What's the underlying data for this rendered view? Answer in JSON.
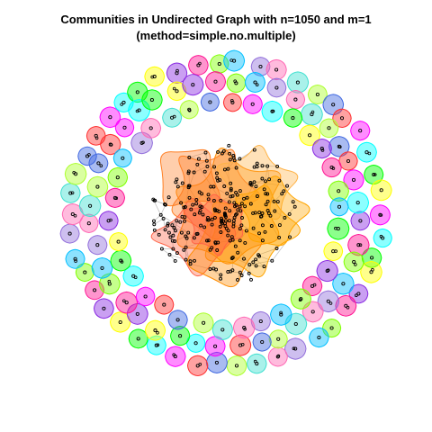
{
  "figure": {
    "title_line1": "Communities in Undirected Graph with n=1050 and m=1",
    "title_line2": "(method=simple.no.multiple)"
  },
  "graph": {
    "type": "community-network",
    "directed": false,
    "n": 1050,
    "m": 1,
    "method": "simple.no.multiple",
    "vertex_color": "#000000",
    "edge_color": "#bbbbbb",
    "central_community_colors": [
      "#ff8c00",
      "#ff7f24",
      "#ffa500",
      "#ff6347",
      "#ffb347"
    ],
    "peripheral_community_colors": [
      "#ff00ff",
      "#00ffff",
      "#00ff00",
      "#ffff00",
      "#8a2be2",
      "#ff1493",
      "#7fff00",
      "#00bfff",
      "#9370db",
      "#ff69b4",
      "#40e0d0",
      "#adff2f",
      "#4169e1",
      "#ff3030"
    ]
  }
}
